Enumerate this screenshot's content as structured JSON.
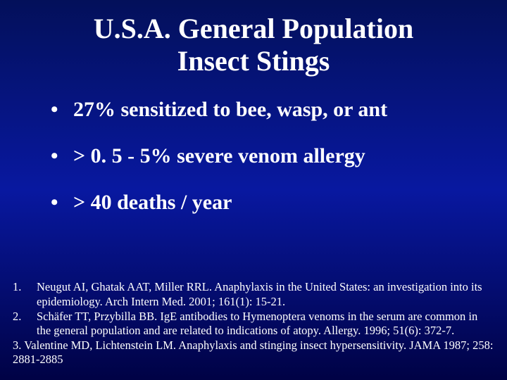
{
  "styling": {
    "background_gradient": [
      "#03105a",
      "#0818a0",
      "#000245"
    ],
    "text_color": "#ffffff",
    "font_family": "Times New Roman",
    "title_fontsize": 40,
    "title_fontweight": "bold",
    "bullet_fontsize": 30,
    "bullet_fontweight": "bold",
    "ref_fontsize": 16.5,
    "slide_width": 720,
    "slide_height": 540
  },
  "title": {
    "line1": "U.S.A. General Population",
    "line2": "Insect Stings"
  },
  "bullets": [
    "27%   sensitized to bee, wasp, or ant",
    "> 0. 5 - 5%   severe venom allergy",
    "> 40 deaths / year"
  ],
  "references": [
    {
      "num": "1.",
      "text": "Neugut AI, Ghatak AAT, Miller RRL. Anaphylaxis in the United States: an investigation into its epidemiology. Arch Intern Med. 2001; 161(1): 15-21."
    },
    {
      "num": "2.",
      "text": "Schäfer TT, Przybilla BB. IgE antibodies to Hymenoptera venoms in the serum are common in the general population and are related to indications of atopy. Allergy. 1996; 51(6): 372-7."
    },
    {
      "num": "",
      "text": "3. Valentine MD, Lichtenstein LM. Anaphylaxis and stinging insect hypersensitivity. JAMA 1987; 258: 2881-2885"
    }
  ]
}
